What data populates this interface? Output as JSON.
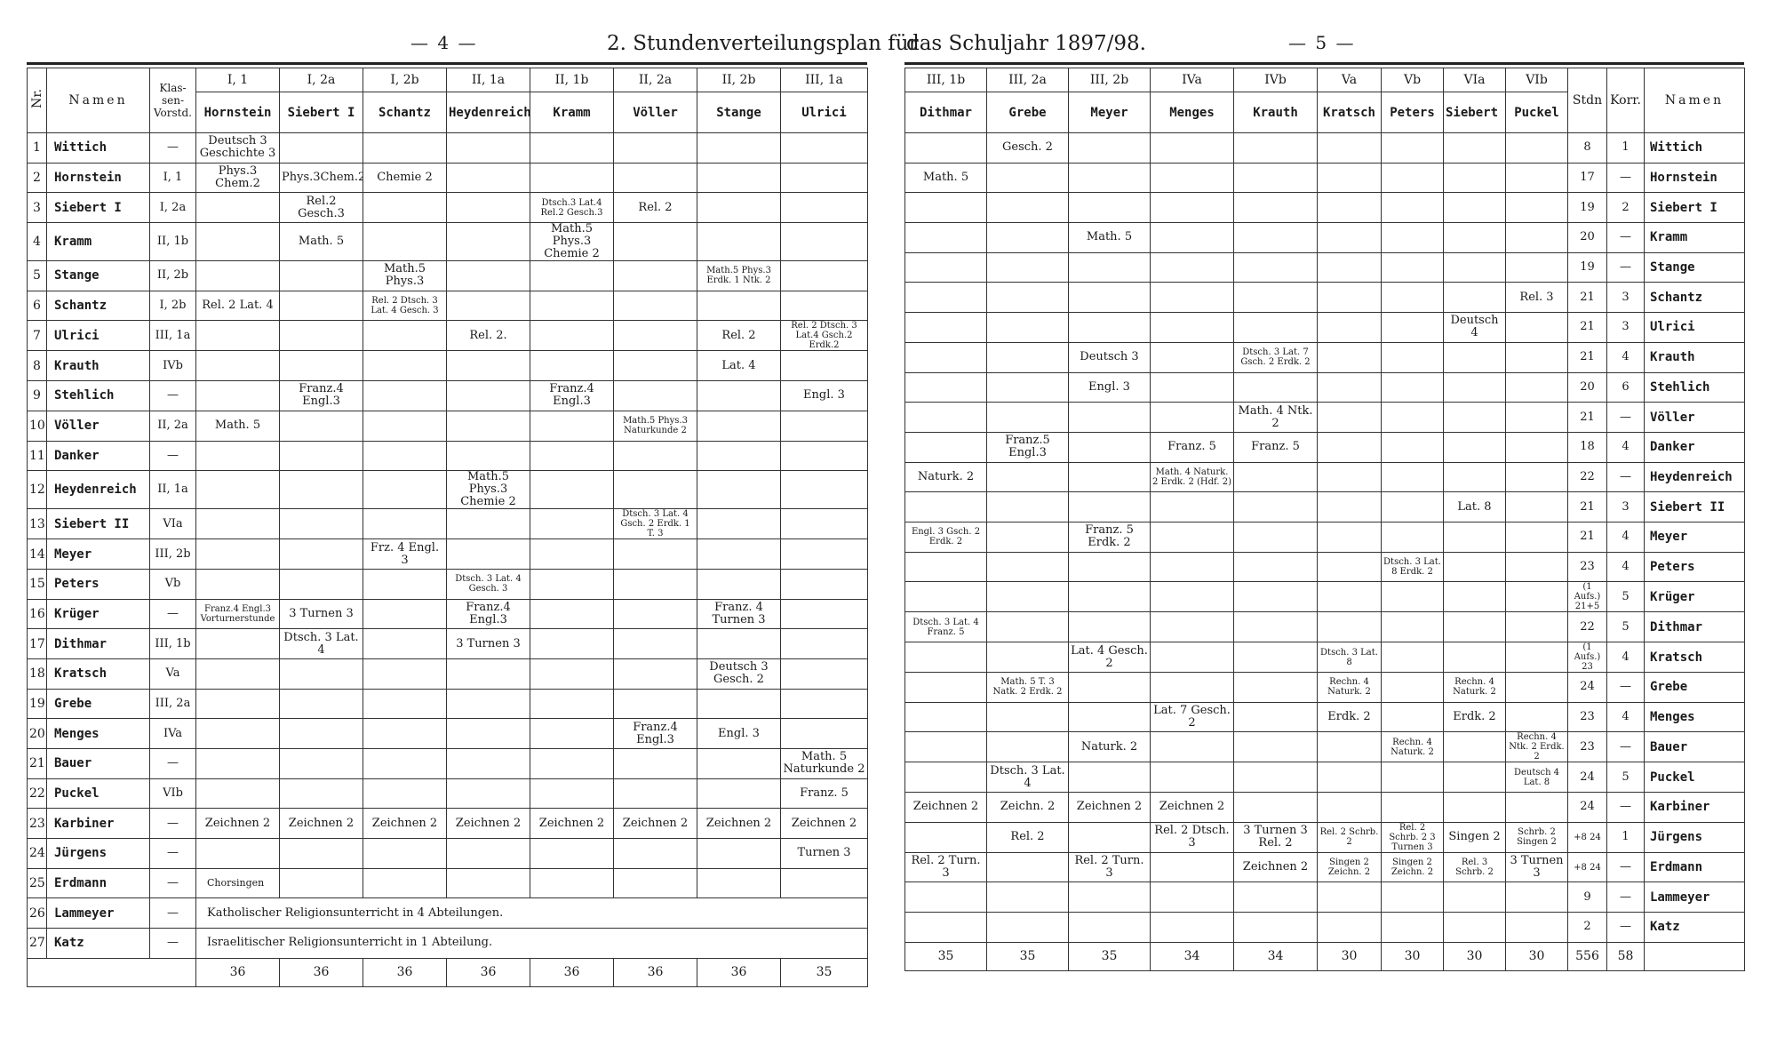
{
  "header": {
    "page_left": "— 4 —",
    "title_left": "2. Stundenverteilungsplan für",
    "title_right": "das Schuljahr 1897/98.",
    "page_right": "— 5 —"
  },
  "left": {
    "head": {
      "nr": "Nr.",
      "namen": "Namen",
      "klassen_vorstd": "Klas-sen-Vorstd."
    },
    "classes": [
      {
        "cls": "I, 1",
        "teacher": "Hornstein"
      },
      {
        "cls": "I, 2a",
        "teacher": "Siebert I"
      },
      {
        "cls": "I, 2b",
        "teacher": "Schantz"
      },
      {
        "cls": "II, 1a",
        "teacher": "Heydenreich"
      },
      {
        "cls": "II, 1b",
        "teacher": "Kramm"
      },
      {
        "cls": "II, 2a",
        "teacher": "Völler"
      },
      {
        "cls": "II, 2b",
        "teacher": "Stange"
      },
      {
        "cls": "III, 1a",
        "teacher": "Ulrici"
      }
    ],
    "rows": [
      {
        "nr": "1",
        "name": "Wittich",
        "vorstd": "—",
        "c": [
          "Deutsch 3 Geschichte 3",
          "",
          "",
          "",
          "",
          "",
          "",
          ""
        ]
      },
      {
        "nr": "2",
        "name": "Hornstein",
        "vorstd": "I, 1",
        "c": [
          "Phys.3 Chem.2",
          "Phys.3Chem.2",
          "Chemie 2",
          "",
          "",
          "",
          "",
          ""
        ]
      },
      {
        "nr": "3",
        "name": "Siebert I",
        "vorstd": "I, 2a",
        "c": [
          "",
          "Rel.2 Gesch.3",
          "",
          "",
          "Dtsch.3 Lat.4 Rel.2 Gesch.3",
          "Rel. 2",
          "",
          ""
        ]
      },
      {
        "nr": "4",
        "name": "Kramm",
        "vorstd": "II, 1b",
        "c": [
          "",
          "Math. 5",
          "",
          "",
          "Math.5 Phys.3 Chemie 2",
          "",
          "",
          ""
        ]
      },
      {
        "nr": "5",
        "name": "Stange",
        "vorstd": "II, 2b",
        "c": [
          "",
          "",
          "Math.5 Phys.3",
          "",
          "",
          "",
          "Math.5 Phys.3 Erdk. 1 Ntk. 2",
          ""
        ]
      },
      {
        "nr": "6",
        "name": "Schantz",
        "vorstd": "I, 2b",
        "c": [
          "Rel. 2 Lat. 4",
          "",
          "Rel. 2 Dtsch. 3 Lat. 4 Gesch. 3",
          "",
          "",
          "",
          "",
          ""
        ]
      },
      {
        "nr": "7",
        "name": "Ulrici",
        "vorstd": "III, 1a",
        "c": [
          "",
          "",
          "",
          "Rel. 2.",
          "",
          "",
          "Rel. 2",
          "Rel. 2 Dtsch. 3 Lat.4 Gsch.2 Erdk.2"
        ]
      },
      {
        "nr": "8",
        "name": "Krauth",
        "vorstd": "IVb",
        "c": [
          "",
          "",
          "",
          "",
          "",
          "",
          "Lat. 4",
          ""
        ]
      },
      {
        "nr": "9",
        "name": "Stehlich",
        "vorstd": "—",
        "c": [
          "",
          "Franz.4 Engl.3",
          "",
          "",
          "Franz.4 Engl.3",
          "",
          "",
          "Engl. 3"
        ]
      },
      {
        "nr": "10",
        "name": "Völler",
        "vorstd": "II, 2a",
        "c": [
          "Math. 5",
          "",
          "",
          "",
          "",
          "Math.5 Phys.3 Naturkunde 2",
          "",
          ""
        ]
      },
      {
        "nr": "11",
        "name": "Danker",
        "vorstd": "—",
        "c": [
          "",
          "",
          "",
          "",
          "",
          "",
          "",
          ""
        ]
      },
      {
        "nr": "12",
        "name": "Heydenreich",
        "vorstd": "II, 1a",
        "c": [
          "",
          "",
          "",
          "Math.5 Phys.3 Chemie 2",
          "",
          "",
          "",
          ""
        ]
      },
      {
        "nr": "13",
        "name": "Siebert II",
        "vorstd": "VIa",
        "c": [
          "",
          "",
          "",
          "",
          "",
          "Dtsch. 3 Lat. 4 Gsch. 2 Erdk. 1 T. 3",
          "",
          ""
        ]
      },
      {
        "nr": "14",
        "name": "Meyer",
        "vorstd": "III, 2b",
        "c": [
          "",
          "",
          "Frz. 4 Engl. 3",
          "",
          "",
          "",
          "",
          ""
        ]
      },
      {
        "nr": "15",
        "name": "Peters",
        "vorstd": "Vb",
        "c": [
          "",
          "",
          "",
          "Dtsch. 3 Lat. 4 Gesch. 3",
          "",
          "",
          "",
          ""
        ]
      },
      {
        "nr": "16",
        "name": "Krüger",
        "vorstd": "—",
        "c": [
          "Franz.4 Engl.3 Vorturnerstunde",
          "3 Turnen 3",
          "",
          "Franz.4 Engl.3",
          "",
          "",
          "Franz. 4 Turnen 3",
          ""
        ]
      },
      {
        "nr": "17",
        "name": "Dithmar",
        "vorstd": "III, 1b",
        "c": [
          "",
          "Dtsch. 3 Lat. 4",
          "",
          "3 Turnen 3",
          "",
          "",
          "",
          ""
        ]
      },
      {
        "nr": "18",
        "name": "Kratsch",
        "vorstd": "Va",
        "c": [
          "",
          "",
          "",
          "",
          "",
          "",
          "Deutsch 3 Gesch. 2",
          ""
        ]
      },
      {
        "nr": "19",
        "name": "Grebe",
        "vorstd": "III, 2a",
        "c": [
          "",
          "",
          "",
          "",
          "",
          "",
          "",
          ""
        ]
      },
      {
        "nr": "20",
        "name": "Menges",
        "vorstd": "IVa",
        "c": [
          "",
          "",
          "",
          "",
          "",
          "Franz.4 Engl.3",
          "Engl. 3",
          ""
        ]
      },
      {
        "nr": "21",
        "name": "Bauer",
        "vorstd": "—",
        "c": [
          "",
          "",
          "",
          "",
          "",
          "",
          "",
          "Math. 5 Naturkunde 2"
        ]
      },
      {
        "nr": "22",
        "name": "Puckel",
        "vorstd": "VIb",
        "c": [
          "",
          "",
          "",
          "",
          "",
          "",
          "",
          "Franz. 5"
        ]
      },
      {
        "nr": "23",
        "name": "Karbiner",
        "vorstd": "—",
        "c": [
          "Zeichnen 2",
          "Zeichnen 2",
          "Zeichnen 2",
          "Zeichnen 2",
          "Zeichnen 2",
          "Zeichnen 2",
          "Zeichnen 2",
          "Zeichnen 2"
        ]
      },
      {
        "nr": "24",
        "name": "Jürgens",
        "vorstd": "—",
        "c": [
          "",
          "",
          "",
          "",
          "",
          "",
          "",
          "Turnen 3"
        ]
      },
      {
        "nr": "25",
        "name": "Erdmann",
        "vorstd": "—",
        "c": [
          "Chorsingen",
          "",
          "",
          "",
          "",
          "",
          "",
          ""
        ]
      }
    ],
    "row26": {
      "nr": "26",
      "name": "Lammeyer",
      "vorstd": "—",
      "text": "Katholischer Religionsunterricht in 4 Abteilungen."
    },
    "row27": {
      "nr": "27",
      "name": "Katz",
      "vorstd": "—",
      "text": "Israelitischer Religionsunterricht in 1 Abteilung."
    },
    "totals": [
      "36",
      "36",
      "36",
      "36",
      "36",
      "36",
      "36",
      "35"
    ]
  },
  "right": {
    "head": {
      "stdn": "Stdn",
      "korr": "Korr.",
      "namen": "Namen"
    },
    "classes": [
      {
        "cls": "III, 1b",
        "teacher": "Dithmar"
      },
      {
        "cls": "III, 2a",
        "teacher": "Grebe"
      },
      {
        "cls": "III, 2b",
        "teacher": "Meyer"
      },
      {
        "cls": "IVa",
        "teacher": "Menges"
      },
      {
        "cls": "IVb",
        "teacher": "Krauth"
      },
      {
        "cls": "Va",
        "teacher": "Kratsch"
      },
      {
        "cls": "Vb",
        "teacher": "Peters"
      },
      {
        "cls": "VIa",
        "teacher": "Siebert II"
      },
      {
        "cls": "VIb",
        "teacher": "Puckel"
      }
    ],
    "rows": [
      {
        "c": [
          "",
          "Gesch. 2",
          "",
          "",
          "",
          "",
          "",
          "",
          ""
        ],
        "stdn": "8",
        "korr": "1",
        "name": "Wittich"
      },
      {
        "c": [
          "Math. 5",
          "",
          "",
          "",
          "",
          "",
          "",
          "",
          ""
        ],
        "stdn": "17",
        "korr": "—",
        "name": "Hornstein"
      },
      {
        "c": [
          "",
          "",
          "",
          "",
          "",
          "",
          "",
          "",
          ""
        ],
        "stdn": "19",
        "korr": "2",
        "name": "Siebert I"
      },
      {
        "c": [
          "",
          "",
          "Math. 5",
          "",
          "",
          "",
          "",
          "",
          ""
        ],
        "stdn": "20",
        "korr": "—",
        "name": "Kramm"
      },
      {
        "c": [
          "",
          "",
          "",
          "",
          "",
          "",
          "",
          "",
          ""
        ],
        "stdn": "19",
        "korr": "—",
        "name": "Stange"
      },
      {
        "c": [
          "",
          "",
          "",
          "",
          "",
          "",
          "",
          "",
          "Rel. 3"
        ],
        "stdn": "21",
        "korr": "3",
        "name": "Schantz"
      },
      {
        "c": [
          "",
          "",
          "",
          "",
          "",
          "",
          "",
          "Deutsch 4",
          ""
        ],
        "stdn": "21",
        "korr": "3",
        "name": "Ulrici"
      },
      {
        "c": [
          "",
          "",
          "Deutsch 3",
          "",
          "Dtsch. 3 Lat. 7 Gsch. 2 Erdk. 2",
          "",
          "",
          "",
          ""
        ],
        "stdn": "21",
        "korr": "4",
        "name": "Krauth"
      },
      {
        "c": [
          "",
          "",
          "Engl. 3",
          "",
          "",
          "",
          "",
          "",
          ""
        ],
        "stdn": "20",
        "korr": "6",
        "name": "Stehlich"
      },
      {
        "c": [
          "",
          "",
          "",
          "",
          "Math. 4 Ntk. 2",
          "",
          "",
          "",
          ""
        ],
        "stdn": "21",
        "korr": "—",
        "name": "Völler"
      },
      {
        "c": [
          "",
          "Franz.5 Engl.3",
          "",
          "Franz. 5",
          "Franz. 5",
          "",
          "",
          "",
          ""
        ],
        "stdn": "18",
        "korr": "4",
        "name": "Danker"
      },
      {
        "c": [
          "Naturk. 2",
          "",
          "",
          "Math. 4 Naturk. 2 Erdk. 2 (Hdf. 2)",
          "",
          "",
          "",
          "",
          ""
        ],
        "stdn": "22",
        "korr": "—",
        "name": "Heydenreich"
      },
      {
        "c": [
          "",
          "",
          "",
          "",
          "",
          "",
          "",
          "Lat. 8",
          ""
        ],
        "stdn": "21",
        "korr": "3",
        "name": "Siebert II"
      },
      {
        "c": [
          "Engl. 3 Gsch. 2 Erdk. 2",
          "",
          "Franz. 5 Erdk. 2",
          "",
          "",
          "",
          "",
          "",
          ""
        ],
        "stdn": "21",
        "korr": "4",
        "name": "Meyer"
      },
      {
        "c": [
          "",
          "",
          "",
          "",
          "",
          "",
          "Dtsch. 3 Lat. 8 Erdk. 2",
          "",
          ""
        ],
        "stdn": "23",
        "korr": "4",
        "name": "Peters"
      },
      {
        "c": [
          "",
          "",
          "",
          "",
          "",
          "",
          "",
          "",
          ""
        ],
        "stdn": "(1 Aufs.) 21+5",
        "korr": "5",
        "name": "Krüger"
      },
      {
        "c": [
          "Dtsch. 3 Lat. 4 Franz. 5",
          "",
          "",
          "",
          "",
          "",
          "",
          "",
          ""
        ],
        "stdn": "22",
        "korr": "5",
        "name": "Dithmar"
      },
      {
        "c": [
          "",
          "",
          "Lat. 4 Gesch. 2",
          "",
          "",
          "Dtsch. 3 Lat. 8",
          "",
          "",
          ""
        ],
        "stdn": "(1 Aufs.) 23",
        "korr": "4",
        "name": "Kratsch"
      },
      {
        "c": [
          "",
          "Math. 5 T. 3 Natk. 2 Erdk. 2",
          "",
          "",
          "",
          "Rechn. 4 Naturk. 2",
          "",
          "Rechn. 4 Naturk. 2",
          ""
        ],
        "stdn": "24",
        "korr": "—",
        "name": "Grebe"
      },
      {
        "c": [
          "",
          "",
          "",
          "Lat. 7 Gesch. 2",
          "",
          "Erdk. 2",
          "",
          "Erdk. 2",
          ""
        ],
        "stdn": "23",
        "korr": "4",
        "name": "Menges"
      },
      {
        "c": [
          "",
          "",
          "Naturk. 2",
          "",
          "",
          "",
          "Rechn. 4 Naturk. 2",
          "",
          "Rechn. 4 Ntk. 2 Erdk. 2"
        ],
        "stdn": "23",
        "korr": "—",
        "name": "Bauer"
      },
      {
        "c": [
          "",
          "Dtsch. 3 Lat. 4",
          "",
          "",
          "",
          "",
          "",
          "",
          "Deutsch 4 Lat. 8"
        ],
        "stdn": "24",
        "korr": "5",
        "name": "Puckel"
      },
      {
        "c": [
          "Zeichnen 2",
          "Zeichn. 2",
          "Zeichnen 2",
          "Zeichnen 2",
          "",
          "",
          "",
          "",
          ""
        ],
        "stdn": "24",
        "korr": "—",
        "name": "Karbiner"
      },
      {
        "c": [
          "",
          "Rel. 2",
          "",
          "Rel. 2 Dtsch. 3",
          "3 Turnen 3 Rel. 2",
          "Rel. 2 Schrb. 2",
          "Rel. 2 Schrb. 2 3 Turnen 3",
          "Singen 2",
          "Schrb. 2 Singen 2"
        ],
        "stdn": "+8 24",
        "korr": "1",
        "name": "Jürgens"
      },
      {
        "c": [
          "Rel. 2 Turn. 3",
          "",
          "Rel. 2 Turn. 3",
          "",
          "Zeichnen 2",
          "Singen 2 Zeichn. 2",
          "Singen 2 Zeichn. 2",
          "Rel. 3 Schrb. 2",
          "3 Turnen 3"
        ],
        "stdn": "+8 24",
        "korr": "—",
        "name": "Erdmann"
      },
      {
        "c": [
          "",
          "",
          "",
          "",
          "",
          "",
          "",
          "",
          ""
        ],
        "stdn": "9",
        "korr": "—",
        "name": "Lammeyer"
      },
      {
        "c": [
          "",
          "",
          "",
          "",
          "",
          "",
          "",
          "",
          ""
        ],
        "stdn": "2",
        "korr": "—",
        "name": "Katz"
      }
    ],
    "totals": [
      "35",
      "35",
      "35",
      "34",
      "34",
      "30",
      "30",
      "30",
      "30",
      "556",
      "58"
    ]
  }
}
